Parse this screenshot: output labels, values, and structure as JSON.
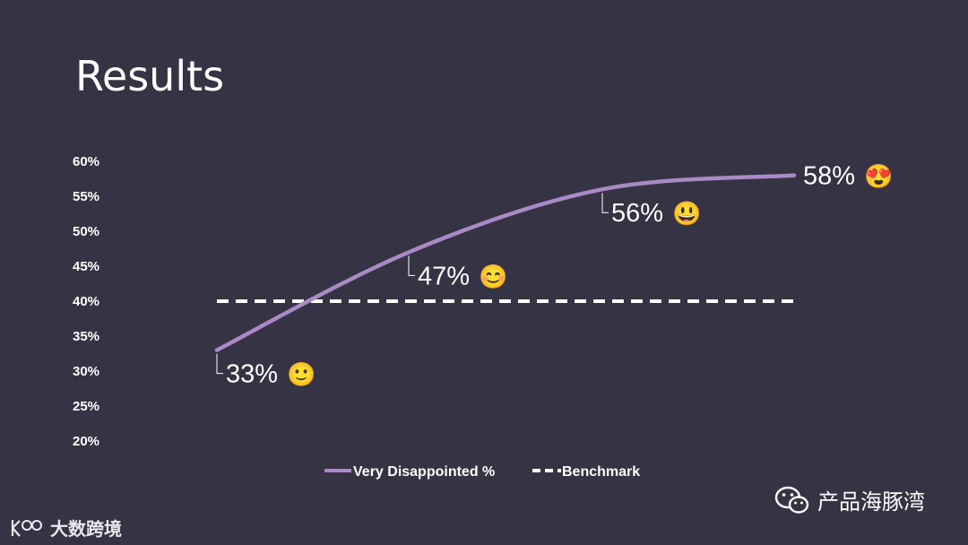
{
  "slide": {
    "title": "Results"
  },
  "chart_data": {
    "type": "line",
    "y_ticks": [
      "20%",
      "25%",
      "30%",
      "35%",
      "40%",
      "45%",
      "50%",
      "55%",
      "60%"
    ],
    "ylim": [
      20,
      60
    ],
    "grid": false,
    "legend_position": "bottom",
    "series": [
      {
        "name": "Very Disappointed %",
        "color": "#a98ac6",
        "points": [
          {
            "x": 1,
            "y": 33,
            "label": "33%",
            "emoji": "🙂"
          },
          {
            "x": 2,
            "y": 47,
            "label": "47%",
            "emoji": "😊"
          },
          {
            "x": 3,
            "y": 56,
            "label": "56%",
            "emoji": "😃"
          },
          {
            "x": 4,
            "y": 58,
            "label": "58%",
            "emoji": "😍"
          }
        ]
      },
      {
        "name": "Benchmark",
        "color": "#ffffff",
        "style": "dashed",
        "value": 40
      }
    ]
  },
  "watermarks": {
    "right_text": "产品海豚湾",
    "right_icon": "wechat-icon",
    "left_text": "大数跨境",
    "left_icon": "brand-logo-icon"
  }
}
